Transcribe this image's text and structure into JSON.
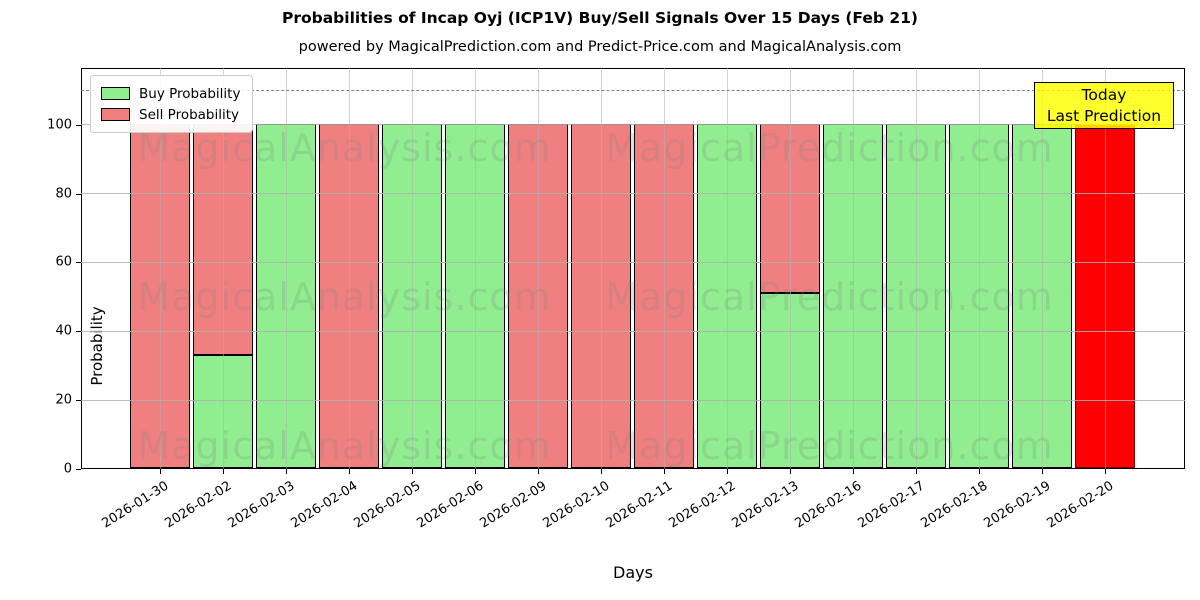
{
  "chart_data": {
    "type": "bar",
    "stacked": true,
    "title": "Probabilities of Incap Oyj (ICP1V) Buy/Sell Signals Over 15 Days (Feb 21)",
    "subtitle": "powered by MagicalPrediction.com and Predict-Price.com and MagicalAnalysis.com",
    "xlabel": "Days",
    "ylabel": "Probability",
    "ylim": [
      0,
      116.5
    ],
    "yticks": [
      0,
      20,
      40,
      60,
      80,
      100
    ],
    "dashed_line_y": 110,
    "grid": true,
    "legend_position": "upper-left",
    "legend": [
      {
        "label": "Buy Probability",
        "color": "#90EE90"
      },
      {
        "label": "Sell Probability",
        "color": "#F08080"
      }
    ],
    "colors": {
      "buy": "#90EE90",
      "sell": "#F08080",
      "today": "#FF0000",
      "today_edge": "#7a0000",
      "annotation_bg": "#FFFF00",
      "bar_edge": "#000000"
    },
    "annotation": {
      "line1": "Today",
      "line2": "Last Prediction"
    },
    "categories": [
      "2026-01-30",
      "2026-02-02",
      "2026-02-03",
      "2026-02-04",
      "2026-02-05",
      "2026-02-06",
      "2026-02-09",
      "2026-02-10",
      "2026-02-11",
      "2026-02-12",
      "2026-02-13",
      "2026-02-16",
      "2026-02-17",
      "2026-02-18",
      "2026-02-19",
      "2026-02-20"
    ],
    "series": [
      {
        "name": "Buy Probability",
        "values": [
          0,
          33,
          100,
          0,
          100,
          100,
          0,
          0,
          0,
          100,
          51,
          100,
          100,
          100,
          100,
          0
        ]
      },
      {
        "name": "Sell Probability",
        "values": [
          100,
          67,
          0,
          100,
          0,
          0,
          100,
          100,
          100,
          0,
          49,
          0,
          0,
          0,
          0,
          0
        ]
      }
    ],
    "today_bar": {
      "date": "2026-02-20",
      "index": 15,
      "value": 100
    },
    "watermarks": [
      "MagicalAnalysis.com",
      "MagicalPrediction.com"
    ]
  }
}
